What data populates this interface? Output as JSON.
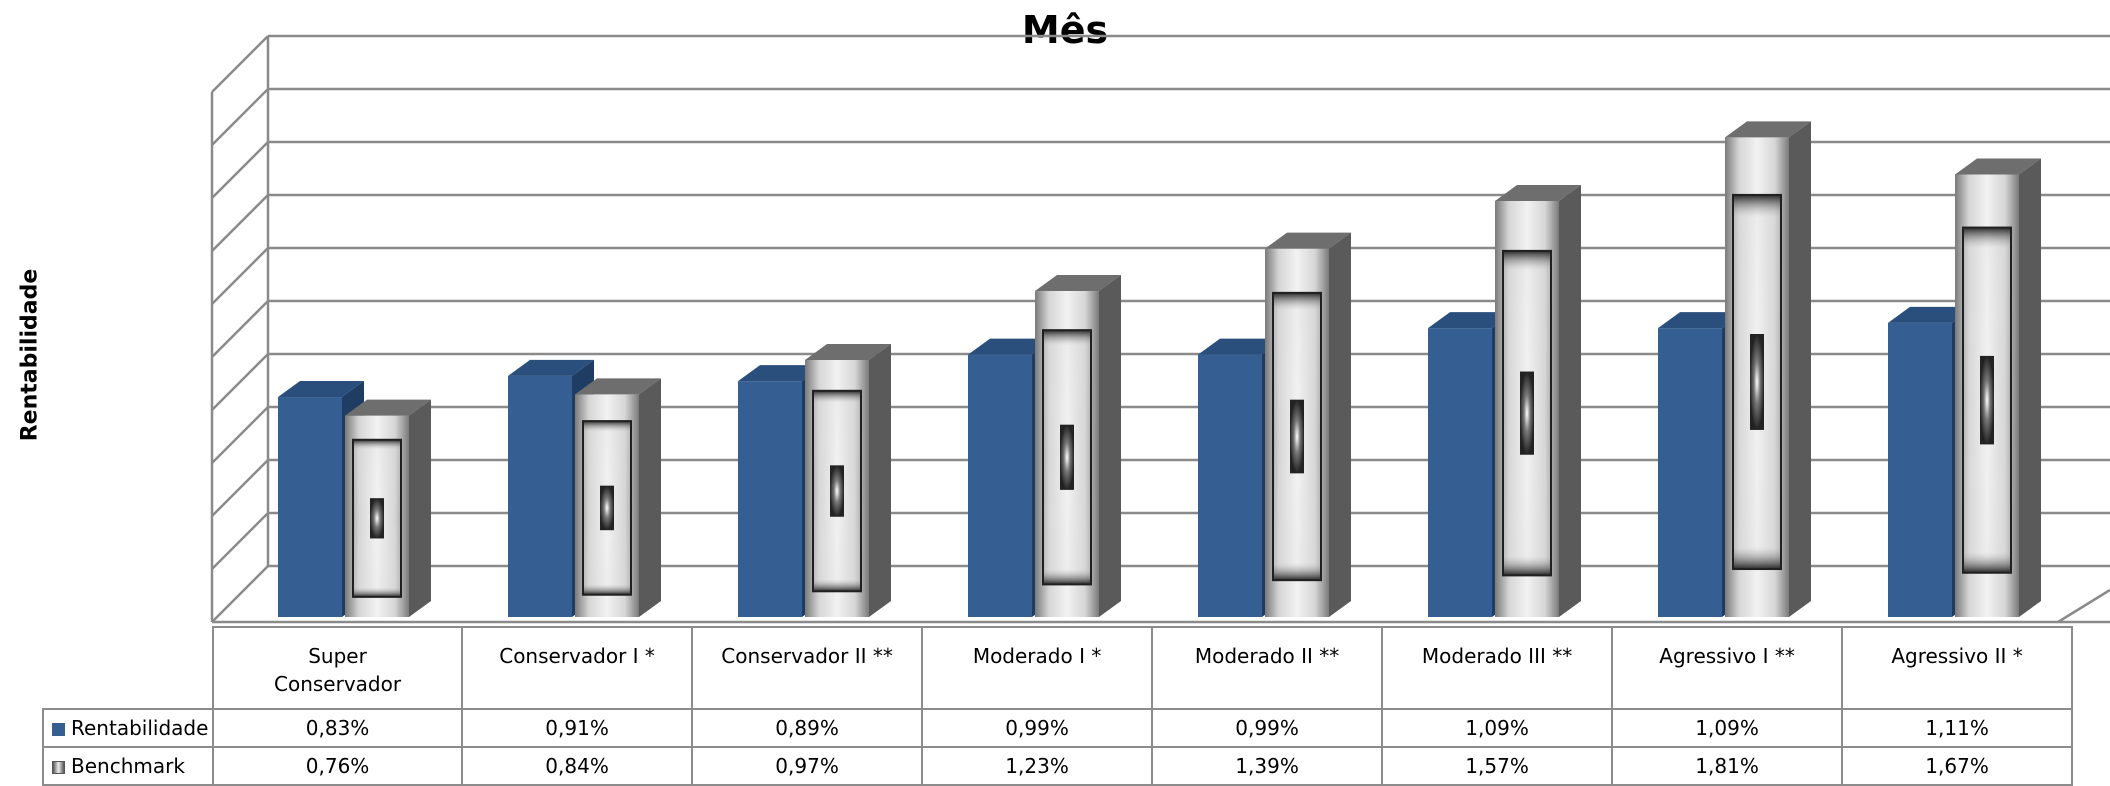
{
  "chart_data": {
    "type": "bar",
    "title": "Mês",
    "xlabel": "",
    "ylabel": "Rentabilidade",
    "ylim": [
      0,
      2.0
    ],
    "grid": true,
    "legend": "data-table",
    "categories": [
      "Super Conservador",
      "Conservador I *",
      "Conservador II **",
      "Moderado I *",
      "Moderado II **",
      "Moderado III **",
      "Agressivo I **",
      "Agressivo II *"
    ],
    "series": [
      {
        "name": "Rentabilidade",
        "values": [
          0.83,
          0.91,
          0.89,
          0.99,
          0.99,
          1.09,
          1.09,
          1.11
        ],
        "labels": [
          "0,83%",
          "0,91%",
          "0,89%",
          "0,99%",
          "0,99%",
          "1,09%",
          "1,09%",
          "1,11%"
        ],
        "color": "#355f92"
      },
      {
        "name": "Benchmark",
        "values": [
          0.76,
          0.84,
          0.97,
          1.23,
          1.39,
          1.57,
          1.81,
          1.67
        ],
        "labels": [
          "0,76%",
          "0,84%",
          "0,97%",
          "1,23%",
          "1,39%",
          "1,57%",
          "1,81%",
          "1,67%"
        ],
        "color": "#c8c8c8"
      }
    ]
  }
}
